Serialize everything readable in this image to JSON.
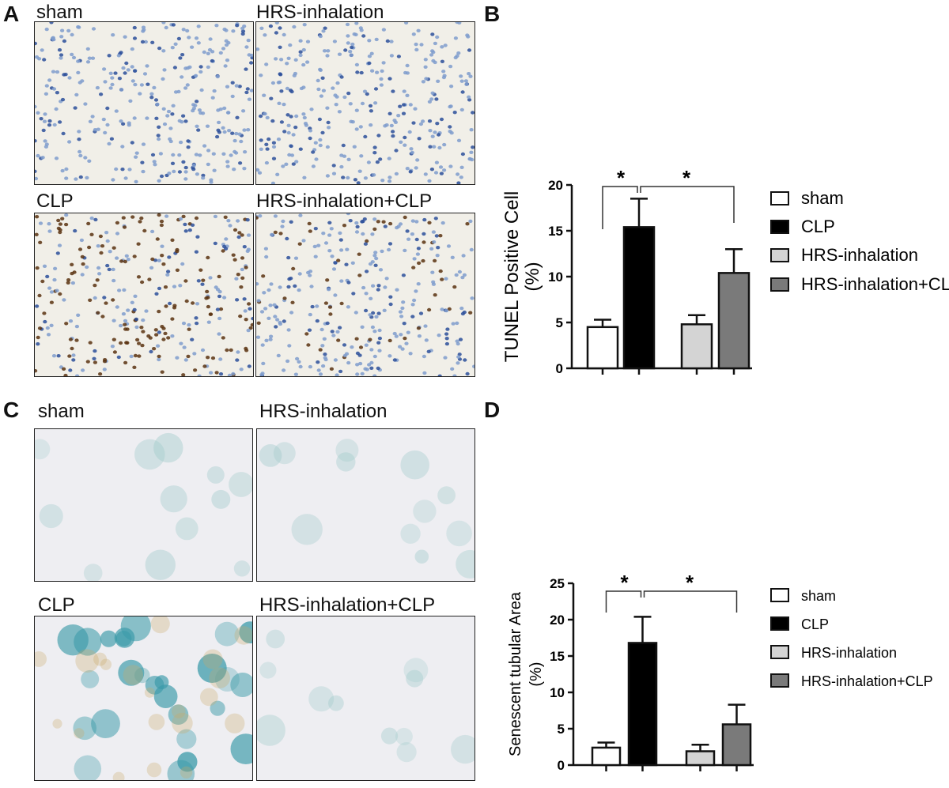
{
  "panels": {
    "A": {
      "letter": "A",
      "labels": [
        "sham",
        "HRS-inhalation",
        "CLP",
        "HRS-inhalation+CLP"
      ]
    },
    "B": {
      "letter": "B"
    },
    "C": {
      "letter": "C",
      "labels": [
        "sham",
        "HRS-inhalation",
        "CLP",
        "HRS-inhalation+CLP"
      ]
    },
    "D": {
      "letter": "D"
    }
  },
  "chart_data": [
    {
      "type": "bar",
      "panel": "B",
      "categories": [
        "sham",
        "CLP",
        "HRS-inhalation",
        "HRS-inhalation+CLP"
      ],
      "values": [
        4.5,
        15.4,
        4.8,
        10.4
      ],
      "errors": [
        0.8,
        3.1,
        1.0,
        2.6
      ],
      "colors": [
        "#ffffff",
        "#000000",
        "#d4d4d4",
        "#7a7a7a"
      ],
      "ylabel": "TUNEL Positive Cell",
      "ylabel2": "(%)",
      "ylim": [
        0,
        20
      ],
      "yticks": [
        "0",
        "5",
        "10",
        "15",
        "20"
      ],
      "annotations": [
        "*",
        "*"
      ],
      "legend": [
        "sham",
        "CLP",
        "HRS-inhalation",
        "HRS-inhalation+CLP"
      ],
      "legend_position": "right"
    },
    {
      "type": "bar",
      "panel": "D",
      "categories": [
        "sham",
        "CLP",
        "HRS-inhalation",
        "HRS-inhalation+CLP"
      ],
      "values": [
        2.4,
        16.8,
        1.9,
        5.6
      ],
      "errors": [
        0.7,
        3.6,
        0.9,
        2.7
      ],
      "colors": [
        "#ffffff",
        "#000000",
        "#d4d4d4",
        "#7a7a7a"
      ],
      "ylabel": "Senescent tubular Area",
      "ylabel2": "(%)",
      "ylim": [
        0,
        25
      ],
      "yticks": [
        "0",
        "5",
        "10",
        "15",
        "20",
        "25"
      ],
      "annotations": [
        "*",
        "*"
      ],
      "legend": [
        "sham",
        "CLP",
        "HRS-inhalation",
        "HRS-inhalation+CLP"
      ],
      "legend_position": "right"
    }
  ]
}
